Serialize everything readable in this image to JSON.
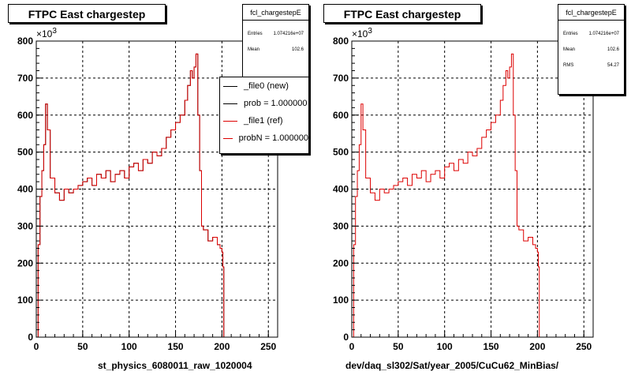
{
  "colors": {
    "new": "#000000",
    "ref": "#dd0000",
    "frame": "#000000"
  },
  "panels": [
    {
      "title": "FTPC East chargestep",
      "stats": {
        "name": "fcl_chargestepE",
        "rows": [
          {
            "label": "Entries",
            "value": "1.074216e+07"
          },
          {
            "label": "Mean",
            "value": "102.6"
          }
        ]
      },
      "legend": [
        {
          "label": "_file0 (new)",
          "color": "#000000"
        },
        {
          "label": "prob = 1.000000",
          "color": "#000000"
        },
        {
          "label": "_file1 (ref)",
          "color": "#dd0000"
        },
        {
          "label": "probN = 1.000000",
          "color": "#dd0000"
        }
      ],
      "xtitle": "st_physics_6080011_raw_1020004",
      "multiplier": "×10",
      "multiplier_exp": "3"
    },
    {
      "title": "FTPC East chargestep",
      "stats": {
        "name": "fcl_chargestepE",
        "rows": [
          {
            "label": "Entries",
            "value": "1.074216e+07"
          },
          {
            "label": "Mean",
            "value": "102.6"
          },
          {
            "label": "RMS",
            "value": "54.27"
          }
        ]
      },
      "legend": [],
      "xtitle": "dev/daq_sl302/Sat/year_2005/CuCu62_MinBias/",
      "multiplier": "×10",
      "multiplier_exp": "3"
    }
  ],
  "chart_data": [
    {
      "type": "line",
      "title": "FTPC East chargestep",
      "xlabel": "st_physics_6080011_raw_1020004",
      "ylabel": "",
      "xlim": [
        0,
        260
      ],
      "ylim": [
        0,
        800000
      ],
      "xticks": [
        "0",
        "50",
        "100",
        "150",
        "200",
        "250"
      ],
      "yticks": [
        "0",
        "100",
        "200",
        "300",
        "400",
        "500",
        "600",
        "700",
        "800"
      ],
      "grid": true,
      "legend_position": "top-right",
      "series": [
        {
          "name": "_file0 (new)",
          "x": [
            0,
            2,
            4,
            6,
            8,
            10,
            12,
            15,
            20,
            25,
            30,
            35,
            40,
            45,
            50,
            55,
            60,
            65,
            70,
            75,
            80,
            85,
            90,
            95,
            100,
            105,
            110,
            115,
            120,
            125,
            130,
            135,
            140,
            145,
            150,
            155,
            160,
            163,
            166,
            168,
            170,
            172,
            174,
            176,
            178,
            180,
            185,
            190,
            195,
            198,
            200,
            201,
            202,
            203,
            260
          ],
          "values": [
            0,
            250000,
            380000,
            450000,
            520000,
            630000,
            560000,
            430000,
            390000,
            370000,
            400000,
            390000,
            400000,
            410000,
            420000,
            430000,
            410000,
            440000,
            430000,
            450000,
            420000,
            440000,
            450000,
            430000,
            460000,
            470000,
            450000,
            480000,
            470000,
            500000,
            490000,
            510000,
            540000,
            560000,
            580000,
            600000,
            640000,
            680000,
            720000,
            700000,
            730000,
            765000,
            600000,
            450000,
            300000,
            290000,
            260000,
            270000,
            250000,
            240000,
            230000,
            190000,
            0,
            0,
            0
          ]
        },
        {
          "name": "_file1 (ref)",
          "x": [
            0,
            2,
            4,
            6,
            8,
            10,
            12,
            15,
            20,
            25,
            30,
            35,
            40,
            45,
            50,
            55,
            60,
            65,
            70,
            75,
            80,
            85,
            90,
            95,
            100,
            105,
            110,
            115,
            120,
            125,
            130,
            135,
            140,
            145,
            150,
            155,
            160,
            163,
            166,
            168,
            170,
            172,
            174,
            176,
            178,
            180,
            185,
            190,
            195,
            198,
            200,
            201,
            202,
            203,
            260
          ],
          "values": [
            0,
            250000,
            380000,
            450000,
            520000,
            630000,
            560000,
            430000,
            390000,
            370000,
            400000,
            390000,
            400000,
            410000,
            420000,
            430000,
            410000,
            440000,
            430000,
            450000,
            420000,
            440000,
            450000,
            430000,
            460000,
            470000,
            450000,
            480000,
            470000,
            500000,
            490000,
            510000,
            540000,
            560000,
            580000,
            600000,
            640000,
            680000,
            720000,
            700000,
            730000,
            765000,
            600000,
            450000,
            300000,
            290000,
            260000,
            270000,
            250000,
            240000,
            230000,
            190000,
            0,
            0,
            0
          ]
        }
      ]
    },
    {
      "type": "line",
      "title": "FTPC East chargestep",
      "xlabel": "dev/daq_sl302/Sat/year_2005/CuCu62_MinBias/",
      "ylabel": "",
      "xlim": [
        0,
        260
      ],
      "ylim": [
        0,
        800000
      ],
      "xticks": [
        "0",
        "50",
        "100",
        "150",
        "200",
        "250"
      ],
      "yticks": [
        "0",
        "100",
        "200",
        "300",
        "400",
        "500",
        "600",
        "700",
        "800"
      ],
      "grid": true,
      "series": [
        {
          "name": "fcl_chargestepE",
          "x": [
            0,
            2,
            4,
            6,
            8,
            10,
            12,
            15,
            20,
            25,
            30,
            35,
            40,
            45,
            50,
            55,
            60,
            65,
            70,
            75,
            80,
            85,
            90,
            95,
            100,
            105,
            110,
            115,
            120,
            125,
            130,
            135,
            140,
            145,
            150,
            155,
            160,
            163,
            166,
            168,
            170,
            172,
            174,
            176,
            178,
            180,
            185,
            190,
            195,
            198,
            200,
            201,
            202,
            203,
            260
          ],
          "values": [
            0,
            250000,
            380000,
            450000,
            520000,
            630000,
            560000,
            430000,
            390000,
            370000,
            400000,
            390000,
            400000,
            410000,
            420000,
            430000,
            410000,
            440000,
            430000,
            450000,
            420000,
            440000,
            450000,
            430000,
            460000,
            470000,
            450000,
            480000,
            470000,
            500000,
            490000,
            510000,
            540000,
            560000,
            580000,
            600000,
            640000,
            680000,
            720000,
            700000,
            730000,
            765000,
            600000,
            450000,
            300000,
            290000,
            260000,
            270000,
            250000,
            240000,
            230000,
            190000,
            0,
            0,
            0
          ]
        }
      ]
    }
  ]
}
